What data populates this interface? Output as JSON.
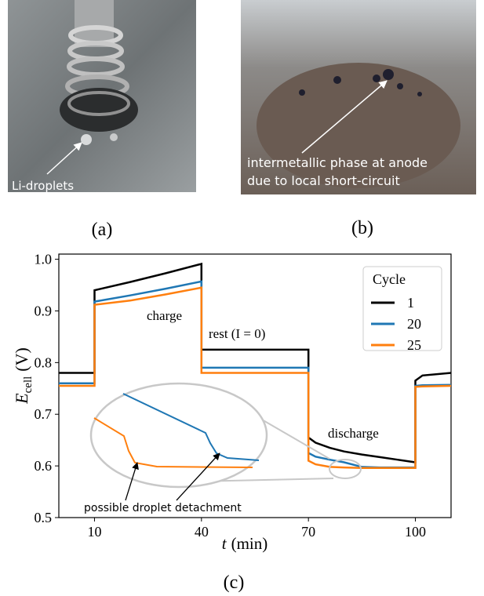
{
  "panels": {
    "a": {
      "label": "(a)",
      "annotation": "Li-droplets"
    },
    "b": {
      "label": "(b)",
      "annotation": [
        "intermetallic phase at anode",
        "due to local short-circuit"
      ]
    },
    "c": {
      "label": "(c)"
    }
  },
  "chart_data": {
    "type": "line",
    "xlabel": {
      "symbol": "t",
      "unit": "(min)"
    },
    "ylabel": {
      "symbol": "E",
      "subscript": "cell",
      "unit": "(V)"
    },
    "x": [
      0,
      10,
      10,
      20,
      30,
      40,
      40,
      55,
      70,
      70,
      72,
      76,
      80,
      85,
      90,
      95,
      100,
      100,
      102,
      110
    ],
    "xlim": [
      0,
      110
    ],
    "xticks": [
      10,
      40,
      70,
      100
    ],
    "ylim": [
      0.5,
      1.01
    ],
    "yticks": [
      0.5,
      0.6,
      0.7,
      0.8,
      0.9,
      {
        "value": 1,
        "label": "1.0"
      }
    ],
    "legend_title": "Cycle",
    "legend": "upper right",
    "series": [
      {
        "name": "1",
        "color": "#000000",
        "values": [
          0.78,
          0.78,
          0.94,
          0.956,
          0.973,
          0.991,
          0.825,
          0.825,
          0.825,
          0.655,
          0.645,
          0.635,
          0.628,
          0.622,
          0.617,
          0.612,
          0.607,
          0.765,
          0.775,
          0.78
        ]
      },
      {
        "name": "20",
        "color": "#1f77b4",
        "values": [
          0.76,
          0.76,
          0.918,
          0.93,
          0.943,
          0.957,
          0.79,
          0.79,
          0.79,
          0.625,
          0.618,
          0.612,
          0.607,
          0.598,
          0.597,
          0.597,
          0.597,
          0.755,
          0.756,
          0.757
        ]
      },
      {
        "name": "25",
        "color": "#ff7f0e",
        "values": [
          0.755,
          0.755,
          0.912,
          0.92,
          0.932,
          0.945,
          0.78,
          0.78,
          0.78,
          0.61,
          0.603,
          0.598,
          0.597,
          0.596,
          0.596,
          0.596,
          0.596,
          0.753,
          0.754,
          0.755
        ]
      }
    ],
    "annotations": [
      "charge",
      "rest (I = 0)",
      "discharge",
      "possible droplet detachment"
    ]
  }
}
